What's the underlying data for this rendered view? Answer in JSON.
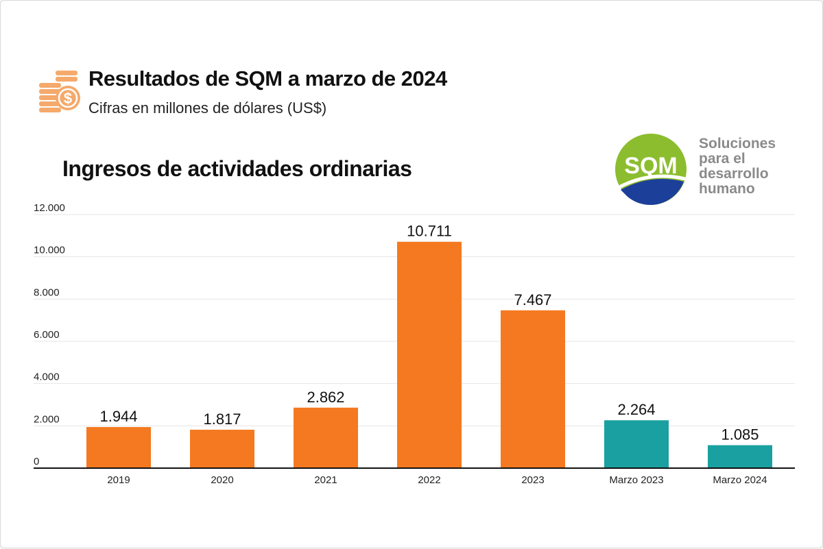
{
  "header": {
    "title": "Resultados de SQM a marzo de 2024",
    "subtitle": "Cifras en millones de dólares (US$)"
  },
  "logo": {
    "text": "SQM",
    "tagline": [
      "Soluciones",
      "para el",
      "desarrollo",
      "humano"
    ]
  },
  "chart_data": {
    "type": "bar",
    "title": "Ingresos de actividades ordinarias",
    "categories": [
      "2019",
      "2020",
      "2021",
      "2022",
      "2023",
      "Marzo 2023",
      "Marzo 2024"
    ],
    "values": [
      1944,
      1817,
      2862,
      10711,
      7467,
      2264,
      1085
    ],
    "value_labels": [
      "1.944",
      "1.817",
      "2.862",
      "10.711",
      "7.467",
      "2.264",
      "1.085"
    ],
    "colors": [
      "#f47920",
      "#f47920",
      "#f47920",
      "#f47920",
      "#f47920",
      "#1aa0a0",
      "#1aa0a0"
    ],
    "ylim": [
      0,
      12000
    ],
    "yticks": [
      0,
      2000,
      4000,
      6000,
      8000,
      10000,
      12000
    ],
    "ytick_labels": [
      "0",
      "2.000",
      "4.000",
      "6.000",
      "8.000",
      "10.000",
      "12.000"
    ],
    "grid": true,
    "xlabel": "",
    "ylabel": ""
  },
  "colors": {
    "orange": "#f47920",
    "teal": "#1aa0a0",
    "logo_green": "#8cbd2e",
    "logo_blue": "#1c3f9a",
    "coin": "#f5a96b"
  }
}
